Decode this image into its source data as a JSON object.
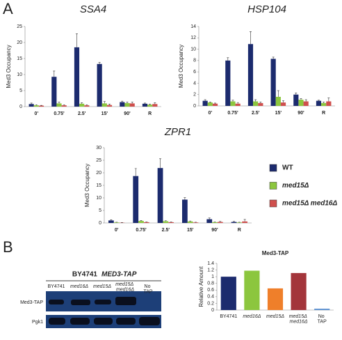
{
  "panels": [
    "A",
    "B"
  ],
  "chart_data": [
    {
      "type": "grouped_bar",
      "title": "SSA4",
      "y_label": "Med3  Occupancy",
      "categories": [
        "0'",
        "0.75'",
        "2.5'",
        "15'",
        "90'",
        "R"
      ],
      "ylim": [
        0,
        25
      ],
      "yticks": [
        0,
        5,
        10,
        15,
        20,
        25
      ],
      "series": [
        {
          "name": "WT",
          "color": "#1c2b6e",
          "values": [
            0.8,
            9.3,
            18.5,
            13.3,
            1.4,
            0.9
          ],
          "errors": [
            0.3,
            1.8,
            4.2,
            0.5,
            0.3,
            0.2
          ]
        },
        {
          "name": "med15Δ",
          "color": "#8cc63e",
          "values": [
            0.4,
            1.0,
            0.9,
            1.0,
            1.1,
            0.6
          ],
          "errors": [
            0.2,
            0.4,
            0.3,
            0.6,
            0.3,
            0.2
          ]
        },
        {
          "name": "med15Δ  med16Δ",
          "color": "#cf4f4d",
          "values": [
            0.3,
            0.4,
            0.4,
            0.5,
            1.0,
            0.8
          ],
          "errors": [
            0.1,
            0.2,
            0.2,
            0.3,
            0.4,
            0.4
          ]
        }
      ]
    },
    {
      "type": "grouped_bar",
      "title": "HSP104",
      "y_label": "Med3  Occupancy",
      "categories": [
        "0'",
        "0.75'",
        "2.5'",
        "15'",
        "90'",
        "R"
      ],
      "ylim": [
        0,
        14
      ],
      "yticks": [
        0,
        2,
        4,
        6,
        8,
        10,
        12,
        14
      ],
      "series": [
        {
          "name": "WT",
          "color": "#1c2b6e",
          "values": [
            0.9,
            8.0,
            10.9,
            8.3,
            2.0,
            0.9
          ],
          "errors": [
            0.2,
            0.5,
            2.2,
            0.3,
            0.3,
            0.1
          ]
        },
        {
          "name": "med15Δ",
          "color": "#8cc63e",
          "values": [
            0.6,
            0.8,
            0.8,
            1.6,
            1.1,
            0.5
          ],
          "errors": [
            0.1,
            0.2,
            0.3,
            1.1,
            0.2,
            0.2
          ]
        },
        {
          "name": "med15Δ  med16Δ",
          "color": "#cf4f4d",
          "values": [
            0.4,
            0.4,
            0.5,
            0.6,
            0.8,
            0.8
          ],
          "errors": [
            0.1,
            0.2,
            0.2,
            0.3,
            0.3,
            0.6
          ]
        }
      ]
    },
    {
      "type": "grouped_bar",
      "title": "ZPR1",
      "y_label": "Med3  Occupancy",
      "categories": [
        "0'",
        "0.75'",
        "2.5'",
        "15'",
        "90'",
        "R"
      ],
      "ylim": [
        0,
        30
      ],
      "yticks": [
        0,
        5,
        10,
        15,
        20,
        25,
        30
      ],
      "legend": "right",
      "series": [
        {
          "name": "WT",
          "color": "#1c2b6e",
          "values": [
            1.0,
            18.7,
            21.9,
            9.3,
            1.5,
            0.4
          ],
          "errors": [
            0.3,
            3.0,
            3.7,
            0.8,
            0.5,
            0.2
          ]
        },
        {
          "name": "med15Δ",
          "color": "#8cc63e",
          "values": [
            0.2,
            0.8,
            0.7,
            0.6,
            0.3,
            0.2
          ],
          "errors": [
            0.1,
            0.2,
            0.2,
            0.2,
            0.1,
            0.1
          ]
        },
        {
          "name": "med15Δ  med16Δ",
          "color": "#cf4f4d",
          "values": [
            0.1,
            0.3,
            0.3,
            0.2,
            0.4,
            0.6
          ],
          "errors": [
            0.1,
            0.1,
            0.1,
            0.1,
            0.2,
            0.8
          ]
        }
      ]
    },
    {
      "type": "bar",
      "title": "Med3-TAP",
      "y_label": "Relative Amount",
      "categories": [
        "BY4741",
        "med16Δ",
        "med15Δ",
        "med15Δ med16Δ",
        "No TAP"
      ],
      "values": [
        1.0,
        1.18,
        0.65,
        1.11,
        0.04
      ],
      "colors": [
        "#1c2b6e",
        "#8cc63e",
        "#ef7f2a",
        "#a3353b",
        "#5a8fd0"
      ],
      "ylim": [
        0,
        1.4
      ],
      "yticks": [
        0,
        0.2,
        0.4,
        0.6,
        0.8,
        1,
        1.2,
        1.4
      ]
    }
  ],
  "blot": {
    "strain": "BY4741",
    "construct": "MED3-TAP",
    "lanes": [
      "BY4741",
      "med16Δ",
      "med15Δ",
      "med15Δ med16Δ",
      "No TAP"
    ],
    "rows": [
      "Med3-TAP",
      "Pgk1"
    ]
  }
}
